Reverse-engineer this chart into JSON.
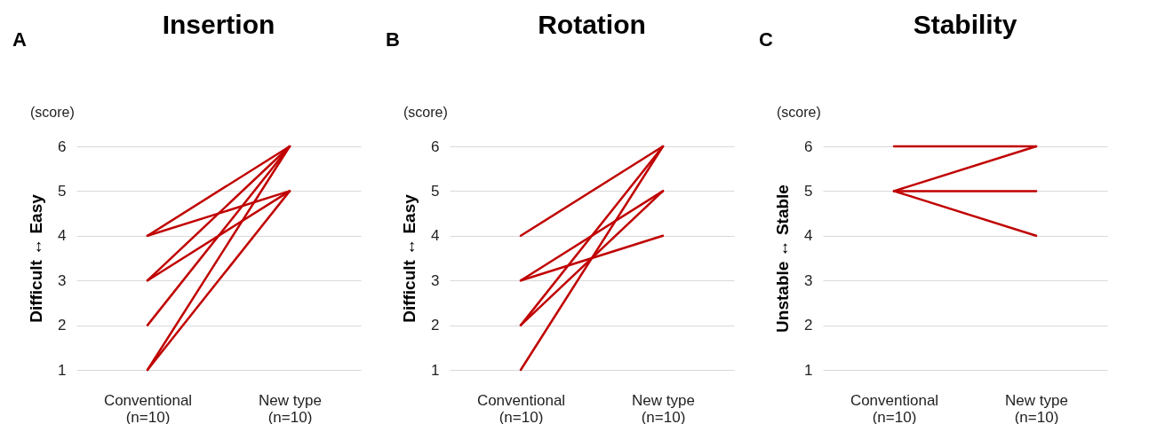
{
  "chart_data": [
    {
      "type": "line",
      "title": "Insertion",
      "ylabel": "Difficult ↔ Easy",
      "annotations": [
        "A",
        "(score)"
      ],
      "categories": [
        "Conventional\n(n=10)",
        "New type\n(n=10)"
      ],
      "ylim": [
        1,
        6
      ],
      "yticks": [
        1,
        2,
        3,
        4,
        5,
        6
      ],
      "grid": "y",
      "legend": false,
      "marker": "none",
      "series": [
        {
          "color": "#c00000",
          "values": [
            4,
            6
          ]
        },
        {
          "color": "#c00000",
          "values": [
            4,
            5
          ]
        },
        {
          "color": "#c00000",
          "values": [
            3,
            6
          ]
        },
        {
          "color": "#c00000",
          "values": [
            3,
            5
          ]
        },
        {
          "color": "#c00000",
          "values": [
            2,
            6
          ]
        },
        {
          "color": "#c00000",
          "values": [
            1,
            6
          ]
        },
        {
          "color": "#c00000",
          "values": [
            1,
            5
          ]
        }
      ]
    },
    {
      "type": "line",
      "title": "Rotation",
      "ylabel": "Difficult ↔ Easy",
      "annotations": [
        "B",
        "(score)"
      ],
      "categories": [
        "Conventional\n(n=10)",
        "New type\n(n=10)"
      ],
      "ylim": [
        1,
        6
      ],
      "yticks": [
        1,
        2,
        3,
        4,
        5,
        6
      ],
      "grid": "y",
      "legend": false,
      "marker": "none",
      "series": [
        {
          "color": "#c00000",
          "values": [
            4,
            6
          ]
        },
        {
          "color": "#c00000",
          "values": [
            3,
            5
          ]
        },
        {
          "color": "#c00000",
          "values": [
            3,
            4
          ]
        },
        {
          "color": "#c00000",
          "values": [
            2,
            6
          ]
        },
        {
          "color": "#c00000",
          "values": [
            2,
            5
          ]
        },
        {
          "color": "#c00000",
          "values": [
            1,
            6
          ]
        }
      ]
    },
    {
      "type": "line",
      "title": "Stability",
      "ylabel": "Unstable ↔ Stable",
      "annotations": [
        "C",
        "(score)"
      ],
      "categories": [
        "Conventional\n(n=10)",
        "New type\n(n=10)"
      ],
      "ylim": [
        1,
        6
      ],
      "yticks": [
        1,
        2,
        3,
        4,
        5,
        6
      ],
      "grid": "y",
      "legend": false,
      "marker": "none",
      "series": [
        {
          "color": "#c00000",
          "values": [
            6,
            6
          ]
        },
        {
          "color": "#c00000",
          "values": [
            5,
            6
          ]
        },
        {
          "color": "#c00000",
          "values": [
            5,
            5
          ]
        },
        {
          "color": "#c00000",
          "values": [
            5,
            4
          ]
        }
      ]
    }
  ]
}
